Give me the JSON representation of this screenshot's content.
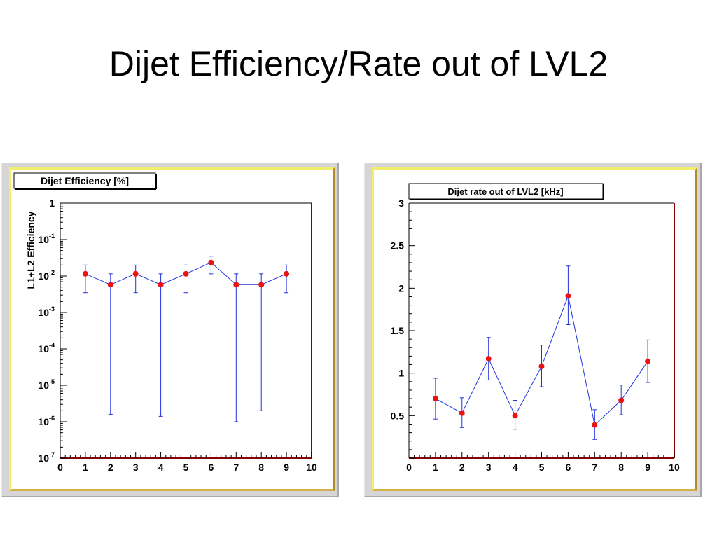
{
  "slide": {
    "title": "Dijet Efficiency/Rate out of LVL2"
  },
  "colors": {
    "marker": "#ee1111",
    "line": "#2233dd",
    "frame_right": "#8b0000",
    "pad_border": "#f2ee69",
    "canvas_bg": "#d6d6d6"
  },
  "chart_data": [
    {
      "type": "scatter",
      "title": "Dijet Efficiency [%]",
      "xlabel": "",
      "ylabel": "L1+L2 Efficiency",
      "log_y": true,
      "xlim": [
        0,
        10
      ],
      "ylim": [
        1e-07,
        1
      ],
      "x_ticks": [
        "0",
        "1",
        "2",
        "3",
        "4",
        "5",
        "6",
        "7",
        "8",
        "9",
        "10"
      ],
      "y_ticks": [
        {
          "base": "1",
          "exp": "",
          "value": 1
        },
        {
          "base": "10",
          "exp": "-1",
          "value": 0.1
        },
        {
          "base": "10",
          "exp": "-2",
          "value": 0.01
        },
        {
          "base": "10",
          "exp": "-3",
          "value": 0.001
        },
        {
          "base": "10",
          "exp": "-4",
          "value": 0.0001
        },
        {
          "base": "10",
          "exp": "-5",
          "value": 1e-05
        },
        {
          "base": "10",
          "exp": "-6",
          "value": 1e-06
        },
        {
          "base": "10",
          "exp": "-7",
          "value": 1e-07
        }
      ],
      "series": [
        {
          "x": [
            1,
            2,
            3,
            4,
            5,
            6,
            7,
            8,
            9
          ],
          "y": [
            0.0115,
            0.0058,
            0.0115,
            0.0058,
            0.0115,
            0.0235,
            0.0058,
            0.0058,
            0.0115
          ],
          "y_low": [
            0.0035,
            1.6e-06,
            0.0035,
            1.4e-06,
            0.0035,
            0.0115,
            1e-06,
            2e-06,
            0.0035
          ],
          "y_high": [
            0.02,
            0.0115,
            0.02,
            0.0115,
            0.02,
            0.035,
            0.0115,
            0.0115,
            0.02
          ]
        }
      ]
    },
    {
      "type": "scatter",
      "title": "Dijet rate out of LVL2 [kHz]",
      "xlabel": "",
      "ylabel": "",
      "log_y": false,
      "xlim": [
        0,
        10
      ],
      "ylim": [
        0,
        3
      ],
      "x_ticks": [
        "0",
        "1",
        "2",
        "3",
        "4",
        "5",
        "6",
        "7",
        "8",
        "9",
        "10"
      ],
      "y_ticks": [
        {
          "label": "3",
          "value": 3
        },
        {
          "label": "2.5",
          "value": 2.5
        },
        {
          "label": "2",
          "value": 2
        },
        {
          "label": "1.5",
          "value": 1.5
        },
        {
          "label": "1",
          "value": 1
        },
        {
          "label": "0.5",
          "value": 0.5
        }
      ],
      "series": [
        {
          "x": [
            1,
            2,
            3,
            4,
            5,
            6,
            7,
            8,
            9
          ],
          "y": [
            0.7,
            0.53,
            1.17,
            0.5,
            1.08,
            1.91,
            0.39,
            0.68,
            1.14
          ],
          "y_low": [
            0.46,
            0.36,
            0.92,
            0.34,
            0.84,
            1.57,
            0.22,
            0.51,
            0.89
          ],
          "y_high": [
            0.94,
            0.71,
            1.42,
            0.68,
            1.33,
            2.26,
            0.57,
            0.86,
            1.39
          ]
        }
      ]
    }
  ]
}
